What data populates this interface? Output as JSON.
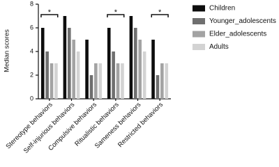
{
  "chart_data": {
    "type": "bar",
    "y_label": "Median scores",
    "categories": [
      "Stereotype behaviors",
      "Self-injurious behaviors",
      "Compulsive behaviors",
      "Ritualistic behaviors",
      "Sameness behaviors",
      "Restricted behaviors"
    ],
    "significance": [
      "*",
      null,
      null,
      "*",
      null,
      "*"
    ],
    "series": [
      {
        "name": "Children",
        "color": "#0d0d0d",
        "values": [
          6,
          7,
          5,
          6,
          7,
          5
        ]
      },
      {
        "name": "Younger_adolescents",
        "color": "#6f6f6f",
        "values": [
          4,
          6,
          2,
          4,
          6,
          2
        ]
      },
      {
        "name": "Elder_adolescents",
        "color": "#a3a3a3",
        "values": [
          3,
          5,
          3,
          3,
          5,
          3
        ]
      },
      {
        "name": "Adults",
        "color": "#d3d3d3",
        "values": [
          3,
          4,
          3,
          3,
          4,
          3
        ]
      }
    ],
    "ylim": [
      0,
      8
    ],
    "yticks": [
      0,
      2,
      4,
      6,
      8
    ],
    "legend": "right"
  }
}
